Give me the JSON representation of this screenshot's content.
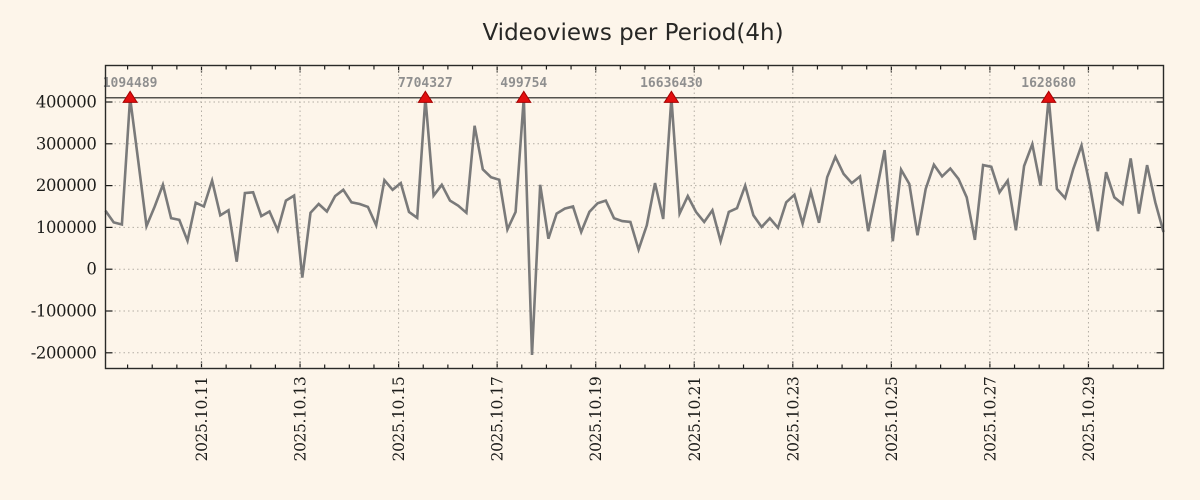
{
  "title": "Videoviews per Period(4h)",
  "colors": {
    "background": "#fdf5ea",
    "series_line": "#7a7a7a",
    "peak_marker": "#e30e0e",
    "peak_label": "#8f8f8f",
    "grid": "#b3ada4",
    "axis_text": "#1d1d1b"
  },
  "chart_data": {
    "type": "line",
    "title": "Videoviews per Period(4h)",
    "period": "4h",
    "grid": true,
    "legend": "none",
    "clip_value": 410000,
    "ylim": [
      -237000,
      488000
    ],
    "y_ticks": [
      400000,
      300000,
      200000,
      100000,
      0,
      -100000,
      -200000
    ],
    "x_tick_labels": [
      "2025.10.11",
      "2025.10.13",
      "2025.10.15",
      "2025.10.17",
      "2025.10.19",
      "2025.10.21",
      "2025.10.23",
      "2025.10.25",
      "2025.10.27",
      "2025.10.29"
    ],
    "values": [
      140000,
      112000,
      107000,
      1094489,
      258000,
      103000,
      150000,
      202000,
      122000,
      118000,
      68000,
      159000,
      150000,
      212000,
      129000,
      141000,
      18000,
      182000,
      184000,
      127000,
      138000,
      93000,
      164000,
      176000,
      -20000,
      135000,
      156000,
      138000,
      175000,
      190000,
      160000,
      156000,
      149000,
      105000,
      213000,
      190000,
      206000,
      137000,
      123000,
      7704327,
      176000,
      202000,
      164000,
      152000,
      135000,
      343000,
      239000,
      220000,
      214000,
      95000,
      137000,
      499754,
      -205000,
      202000,
      73000,
      133000,
      145000,
      150000,
      89000,
      137000,
      158000,
      164000,
      122000,
      115000,
      113000,
      47000,
      105000,
      206000,
      120000,
      16636430,
      133000,
      175000,
      137000,
      113000,
      141000,
      67000,
      137000,
      146000,
      200000,
      129000,
      101000,
      122000,
      99000,
      160000,
      178000,
      109000,
      186000,
      111000,
      220000,
      269000,
      228000,
      206000,
      222000,
      91000,
      185000,
      285000,
      67000,
      238000,
      204000,
      81000,
      192000,
      250000,
      222000,
      241000,
      216000,
      172000,
      70000,
      249000,
      245000,
      184000,
      212000,
      93000,
      247000,
      299000,
      200000,
      1628680,
      192000,
      170000,
      240000,
      296000,
      202000,
      91000,
      232000,
      172000,
      156000,
      265000,
      133000,
      249000,
      160000,
      89000
    ],
    "peaks": [
      {
        "index": 3,
        "label": "1094489",
        "value": 1094489
      },
      {
        "index": 39,
        "label": "7704327",
        "value": 7704327
      },
      {
        "index": 51,
        "label": "499754",
        "value": 499754
      },
      {
        "index": 69,
        "label": "16636430",
        "value": 16636430
      },
      {
        "index": 115,
        "label": "1628680",
        "value": 1628680
      }
    ]
  }
}
